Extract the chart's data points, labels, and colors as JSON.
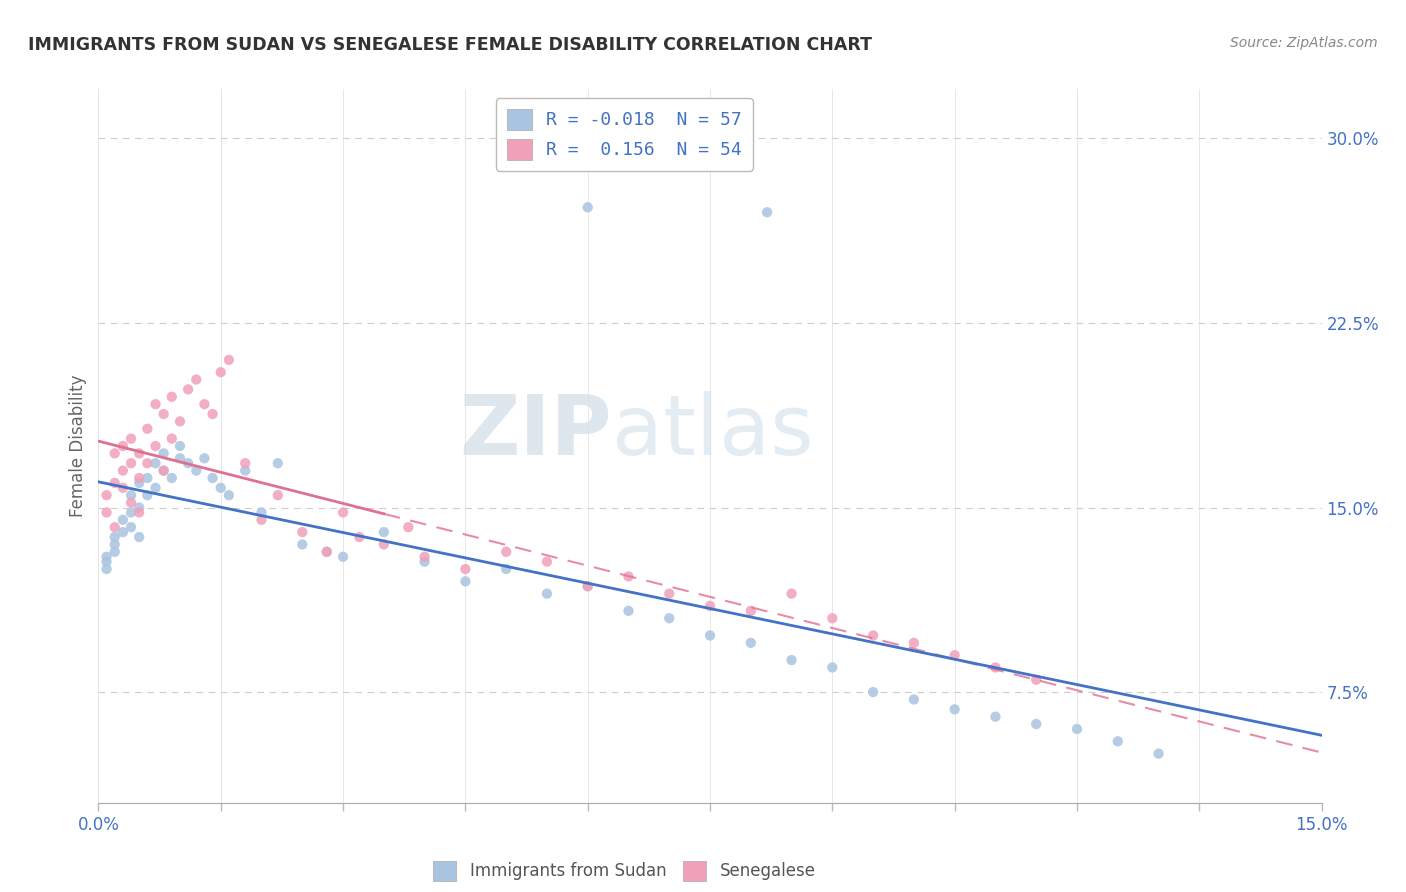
{
  "title": "IMMIGRANTS FROM SUDAN VS SENEGALESE FEMALE DISABILITY CORRELATION CHART",
  "source": "Source: ZipAtlas.com",
  "ylabel": "Female Disability",
  "right_yticks": [
    "7.5%",
    "15.0%",
    "22.5%",
    "30.0%"
  ],
  "right_ytick_vals": [
    0.075,
    0.15,
    0.225,
    0.3
  ],
  "xlim": [
    0.0,
    0.15
  ],
  "ylim": [
    0.03,
    0.32
  ],
  "legend_entry1": "R = -0.018  N = 57",
  "legend_entry2": "R =  0.156  N = 54",
  "legend_label1": "Immigrants from Sudan",
  "legend_label2": "Senegalese",
  "scatter_color1": "#a8c4e0",
  "scatter_color2": "#f0a0b8",
  "line_color1": "#4472c4",
  "line_color2": "#e07090",
  "background_color": "#ffffff",
  "sudan_x": [
    0.001,
    0.001,
    0.001,
    0.002,
    0.002,
    0.002,
    0.003,
    0.003,
    0.004,
    0.004,
    0.004,
    0.005,
    0.005,
    0.005,
    0.006,
    0.006,
    0.007,
    0.007,
    0.008,
    0.008,
    0.009,
    0.01,
    0.01,
    0.011,
    0.012,
    0.013,
    0.014,
    0.015,
    0.016,
    0.018,
    0.02,
    0.022,
    0.025,
    0.028,
    0.03,
    0.035,
    0.04,
    0.045,
    0.05,
    0.055,
    0.06,
    0.065,
    0.07,
    0.075,
    0.08,
    0.085,
    0.09,
    0.095,
    0.1,
    0.105,
    0.11,
    0.115,
    0.12,
    0.125,
    0.13,
    0.082,
    0.06
  ],
  "sudan_y": [
    0.13,
    0.128,
    0.125,
    0.135,
    0.138,
    0.132,
    0.14,
    0.145,
    0.142,
    0.148,
    0.155,
    0.15,
    0.16,
    0.138,
    0.155,
    0.162,
    0.158,
    0.168,
    0.165,
    0.172,
    0.162,
    0.17,
    0.175,
    0.168,
    0.165,
    0.17,
    0.162,
    0.158,
    0.155,
    0.165,
    0.148,
    0.168,
    0.135,
    0.132,
    0.13,
    0.14,
    0.128,
    0.12,
    0.125,
    0.115,
    0.118,
    0.108,
    0.105,
    0.098,
    0.095,
    0.088,
    0.085,
    0.075,
    0.072,
    0.068,
    0.065,
    0.062,
    0.06,
    0.055,
    0.05,
    0.27,
    0.272
  ],
  "senegal_x": [
    0.001,
    0.001,
    0.002,
    0.002,
    0.002,
    0.003,
    0.003,
    0.003,
    0.004,
    0.004,
    0.004,
    0.005,
    0.005,
    0.005,
    0.006,
    0.006,
    0.007,
    0.007,
    0.008,
    0.008,
    0.009,
    0.009,
    0.01,
    0.011,
    0.012,
    0.013,
    0.014,
    0.015,
    0.016,
    0.018,
    0.02,
    0.022,
    0.025,
    0.028,
    0.03,
    0.032,
    0.035,
    0.038,
    0.04,
    0.045,
    0.05,
    0.055,
    0.06,
    0.065,
    0.07,
    0.075,
    0.08,
    0.085,
    0.09,
    0.095,
    0.1,
    0.105,
    0.11,
    0.115
  ],
  "senegal_y": [
    0.155,
    0.148,
    0.16,
    0.142,
    0.172,
    0.165,
    0.158,
    0.175,
    0.168,
    0.152,
    0.178,
    0.162,
    0.172,
    0.148,
    0.182,
    0.168,
    0.175,
    0.192,
    0.188,
    0.165,
    0.178,
    0.195,
    0.185,
    0.198,
    0.202,
    0.192,
    0.188,
    0.205,
    0.21,
    0.168,
    0.145,
    0.155,
    0.14,
    0.132,
    0.148,
    0.138,
    0.135,
    0.142,
    0.13,
    0.125,
    0.132,
    0.128,
    0.118,
    0.122,
    0.115,
    0.11,
    0.108,
    0.115,
    0.105,
    0.098,
    0.095,
    0.09,
    0.085,
    0.08
  ]
}
